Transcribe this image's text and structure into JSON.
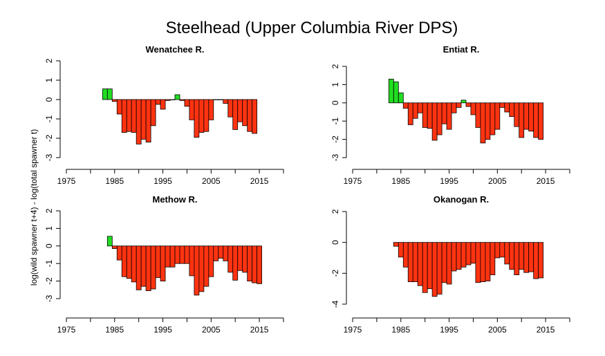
{
  "title": "Steelhead (Upper Columbia River DPS)",
  "ylabel": "log(wild spawner t+4) - log(total spawner t)",
  "colors": {
    "positive": "#22dd22",
    "negative": "#ff3311",
    "stroke": "#000000"
  },
  "chart_data": [
    {
      "type": "bar",
      "title": "Wenatchee R.",
      "xlim": [
        1975,
        2020
      ],
      "ylim": [
        -3,
        2
      ],
      "xticks": [
        1975,
        1985,
        1995,
        2005,
        2015
      ],
      "yticks": [
        2,
        1,
        0,
        -1,
        -2,
        -3
      ],
      "x": [
        1983,
        1984,
        1985,
        1986,
        1987,
        1988,
        1989,
        1990,
        1991,
        1992,
        1993,
        1994,
        1995,
        1996,
        1997,
        1998,
        1999,
        2000,
        2001,
        2002,
        2003,
        2004,
        2005,
        2006,
        2007,
        2008,
        2009,
        2010,
        2011,
        2012,
        2013,
        2014
      ],
      "values": [
        0.55,
        0.55,
        -0.1,
        -0.75,
        -1.7,
        -1.65,
        -1.7,
        -2.3,
        -2.05,
        -2.2,
        -1.35,
        -0.25,
        -0.5,
        -0.05,
        0.0,
        0.25,
        -0.05,
        -0.35,
        -1.05,
        -1.95,
        -1.7,
        -1.65,
        -1.05,
        0.0,
        0.0,
        -0.2,
        -0.9,
        -1.55,
        -1.15,
        -1.35,
        -1.65,
        -1.75
      ]
    },
    {
      "type": "bar",
      "title": "Entiat R.",
      "xlim": [
        1975,
        2020
      ],
      "ylim": [
        -3,
        2
      ],
      "xticks": [
        1975,
        1985,
        1995,
        2005,
        2015
      ],
      "yticks": [
        2,
        1,
        0,
        -1,
        -2,
        -3
      ],
      "x": [
        1983,
        1984,
        1985,
        1986,
        1987,
        1988,
        1989,
        1990,
        1991,
        1992,
        1993,
        1994,
        1995,
        1996,
        1997,
        1998,
        1999,
        2000,
        2001,
        2002,
        2003,
        2004,
        2005,
        2006,
        2007,
        2008,
        2009,
        2010,
        2011,
        2012,
        2013,
        2014
      ],
      "values": [
        1.3,
        1.15,
        0.55,
        -0.3,
        -1.2,
        -0.85,
        -0.55,
        -1.35,
        -1.4,
        -2.05,
        -1.75,
        -1.15,
        -1.45,
        -0.55,
        -0.25,
        0.15,
        -0.2,
        -0.65,
        -1.35,
        -2.2,
        -2.0,
        -1.75,
        -1.45,
        -0.25,
        -0.5,
        -0.75,
        -1.3,
        -1.9,
        -1.45,
        -1.55,
        -1.9,
        -2.0
      ]
    },
    {
      "type": "bar",
      "title": "Methow R.",
      "xlim": [
        1975,
        2020
      ],
      "ylim": [
        -3,
        2
      ],
      "xticks": [
        1975,
        1985,
        1995,
        2005,
        2015
      ],
      "yticks": [
        2,
        1,
        0,
        -1,
        -2,
        -3
      ],
      "x": [
        1984,
        1985,
        1986,
        1987,
        1988,
        1989,
        1990,
        1991,
        1992,
        1993,
        1994,
        1995,
        1996,
        1997,
        1998,
        1999,
        2000,
        2001,
        2002,
        2003,
        2004,
        2005,
        2006,
        2007,
        2008,
        2009,
        2010,
        2011,
        2012,
        2013,
        2014,
        2015
      ],
      "values": [
        0.55,
        -0.15,
        -0.8,
        -1.75,
        -1.85,
        -2.05,
        -2.5,
        -2.3,
        -2.55,
        -2.45,
        -1.8,
        -2.0,
        -1.2,
        -1.2,
        -1.0,
        -1.0,
        -1.0,
        -1.7,
        -2.8,
        -2.6,
        -2.3,
        -1.75,
        -0.85,
        -0.7,
        -0.85,
        -1.5,
        -1.95,
        -1.4,
        -1.5,
        -2.0,
        -2.1,
        -2.15
      ]
    },
    {
      "type": "bar",
      "title": "Okanogan R.",
      "xlim": [
        1975,
        2020
      ],
      "ylim": [
        -4,
        2
      ],
      "xticks": [
        1975,
        1985,
        1995,
        2005,
        2015
      ],
      "yticks": [
        2,
        0,
        -2,
        -4
      ],
      "x": [
        1984,
        1985,
        1986,
        1987,
        1988,
        1989,
        1990,
        1991,
        1992,
        1993,
        1994,
        1995,
        1996,
        1997,
        1998,
        1999,
        2000,
        2001,
        2002,
        2003,
        2004,
        2005,
        2006,
        2007,
        2008,
        2009,
        2010,
        2011,
        2012,
        2013,
        2014
      ],
      "values": [
        -0.25,
        -0.95,
        -1.6,
        -2.55,
        -2.55,
        -2.8,
        -3.25,
        -3.0,
        -3.5,
        -3.35,
        -2.6,
        -2.7,
        -1.85,
        -1.75,
        -1.6,
        -1.45,
        -1.35,
        -2.6,
        -2.55,
        -2.5,
        -2.1,
        -1.0,
        -0.95,
        -1.4,
        -1.75,
        -2.1,
        -1.75,
        -1.95,
        -1.9,
        -2.35,
        -2.3
      ]
    }
  ]
}
